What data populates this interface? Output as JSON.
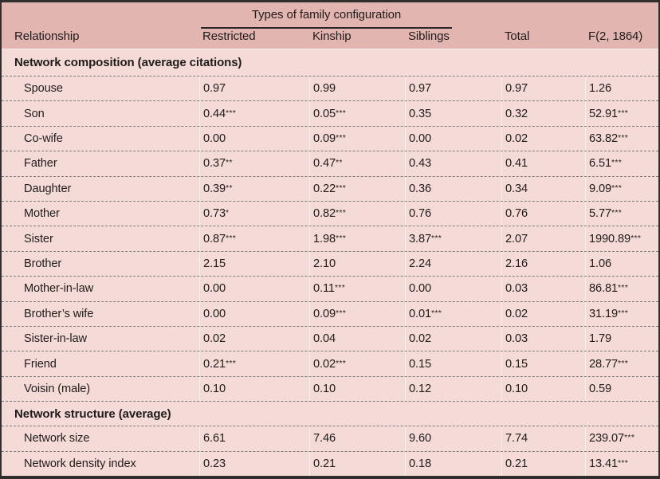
{
  "table": {
    "span_header": "Types of family configuration",
    "columns": [
      "Relationship",
      "Restricted",
      "Kinship",
      "Siblings",
      "Total",
      "F(2, 1864)"
    ],
    "sections": [
      {
        "title": "Network composition (average citations)",
        "rows": [
          {
            "label": "Spouse",
            "values": [
              "0.97",
              "0.99",
              "0.97",
              "0.97",
              "1.26"
            ]
          },
          {
            "label": "Son",
            "values": [
              "0.44***",
              "0.05***",
              "0.35",
              "0.32",
              "52.91***"
            ]
          },
          {
            "label": "Co-wife",
            "values": [
              "0.00",
              "0.09***",
              "0.00",
              "0.02",
              "63.82***"
            ]
          },
          {
            "label": "Father",
            "values": [
              "0.37**",
              "0.47**",
              "0.43",
              "0.41",
              "6.51***"
            ]
          },
          {
            "label": "Daughter",
            "values": [
              "0.39**",
              "0.22***",
              "0.36",
              "0.34",
              "9.09***"
            ]
          },
          {
            "label": "Mother",
            "values": [
              "0.73*",
              "0.82***",
              "0.76",
              "0.76",
              "5.77***"
            ]
          },
          {
            "label": "Sister",
            "values": [
              "0.87***",
              "1.98***",
              "3.87***",
              "2.07",
              "1990.89***"
            ]
          },
          {
            "label": "Brother",
            "values": [
              "2.15",
              "2.10",
              "2.24",
              "2.16",
              "1.06"
            ]
          },
          {
            "label": "Mother-in-law",
            "values": [
              "0.00",
              "0.11***",
              "0.00",
              "0.03",
              "86.81***"
            ]
          },
          {
            "label": "Brother’s wife",
            "values": [
              "0.00",
              "0.09***",
              "0.01***",
              "0.02",
              "31.19***"
            ]
          },
          {
            "label": "Sister-in-law",
            "values": [
              "0.02",
              "0.04",
              "0.02",
              "0.03",
              "1.79"
            ]
          },
          {
            "label": "Friend",
            "values": [
              "0.21***",
              "0.02***",
              "0.15",
              "0.15",
              "28.77***"
            ]
          },
          {
            "label": "Voisin (male)",
            "values": [
              "0.10",
              "0.10",
              "0.12",
              "0.10",
              "0.59"
            ]
          }
        ]
      },
      {
        "title": "Network structure (average)",
        "rows": [
          {
            "label": "Network size",
            "values": [
              "6.61",
              "7.46",
              "9.60",
              "7.74",
              "239.07***"
            ]
          },
          {
            "label": "Network density index",
            "values": [
              "0.23",
              "0.21",
              "0.18",
              "0.21",
              "13.41***"
            ]
          }
        ]
      }
    ],
    "colors": {
      "header_bg": "#e2b5b1",
      "body_bg": "#f5dbd8",
      "frame_border": "#322e2d",
      "text": "#201b1a",
      "dashed_separator": "#7d7d7d"
    }
  }
}
